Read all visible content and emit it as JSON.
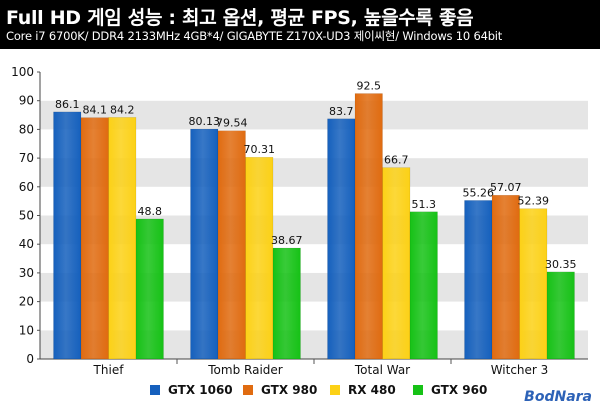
{
  "header": {
    "title": "Full HD 게임 성능 : 최고 옵션, 평균 FPS, 높을수록 좋음",
    "subtitle": "Core i7 6700K/ DDR4 2133MHz 4GB*4/ GIGABYTE Z170X-UD3 제이씨현/ Windows 10 64bit"
  },
  "watermark": "BodNara",
  "chart_data": {
    "type": "bar",
    "categories": [
      "Thief",
      "Tomb Raider",
      "Total War",
      "Witcher 3"
    ],
    "series": [
      {
        "name": "GTX 1060",
        "color": "#1560bd",
        "values": [
          86.1,
          80.13,
          83.7,
          55.26
        ],
        "labels": [
          "86.1",
          "80.13",
          "83.7",
          "55.26"
        ]
      },
      {
        "name": "GTX 980",
        "color": "#e06b10",
        "values": [
          84.1,
          79.54,
          92.5,
          57.07
        ],
        "labels": [
          "84.1",
          "79.54",
          "92.5",
          "57.07"
        ]
      },
      {
        "name": "RX 480",
        "color": "#fcd116",
        "values": [
          84.2,
          70.31,
          66.7,
          52.39
        ],
        "labels": [
          "84.2",
          "70.31",
          "66.7",
          "52.39"
        ]
      },
      {
        "name": "GTX 960",
        "color": "#16c216",
        "values": [
          48.8,
          38.67,
          51.3,
          30.35
        ],
        "labels": [
          "48.8",
          "38.67",
          "51.3",
          "30.35"
        ]
      }
    ],
    "yticks": [
      0,
      10,
      20,
      30,
      40,
      50,
      60,
      70,
      80,
      90,
      100
    ],
    "ylim": [
      0,
      100
    ],
    "grid": "horizontal bands",
    "legend": "bottom"
  }
}
